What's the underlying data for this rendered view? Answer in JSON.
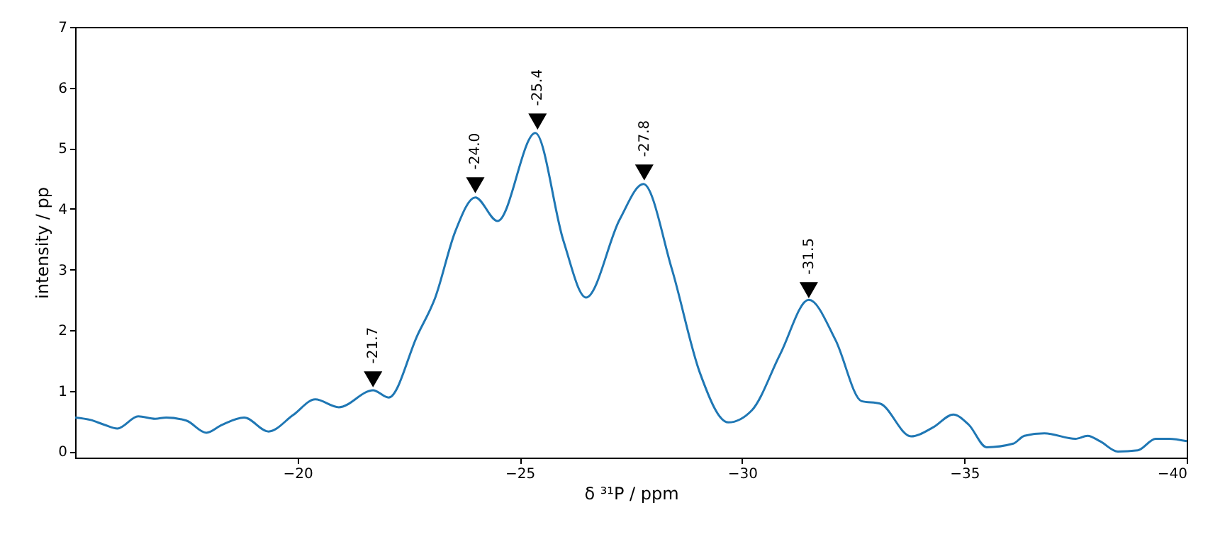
{
  "chart_data": {
    "type": "line",
    "xlabel": "δ ³¹P / ppm",
    "ylabel": "intensity / pp",
    "xlim": [
      -15,
      -40
    ],
    "xticks": [
      -20,
      -25,
      -30,
      -35,
      -40
    ],
    "ylim": [
      -0.1,
      7
    ],
    "yticks": [
      0,
      1,
      2,
      3,
      4,
      5,
      6,
      7
    ],
    "grid": false,
    "series": [
      {
        "color": "#1f77b4",
        "x": [
          -15.0,
          -15.35,
          -15.66,
          -15.95,
          -16.42,
          -16.8,
          -17.05,
          -17.5,
          -17.95,
          -18.3,
          -18.8,
          -19.35,
          -19.9,
          -20.4,
          -20.93,
          -21.7,
          -22.05,
          -22.7,
          -23.1,
          -23.55,
          -24.0,
          -24.5,
          -25.35,
          -25.98,
          -26.49,
          -27.25,
          -27.78,
          -28.42,
          -29.05,
          -29.69,
          -30.22,
          -30.86,
          -31.5,
          -32.1,
          -32.69,
          -33.1,
          -33.8,
          -34.3,
          -34.75,
          -35.1,
          -35.5,
          -36.1,
          -36.35,
          -36.8,
          -37.5,
          -37.77,
          -38.05,
          -38.45,
          -38.9,
          -39.3,
          -39.6,
          -40.0
        ],
        "values": [
          0.56,
          0.52,
          0.44,
          0.38,
          0.58,
          0.54,
          0.56,
          0.51,
          0.31,
          0.44,
          0.56,
          0.33,
          0.6,
          0.86,
          0.73,
          1.01,
          0.89,
          1.92,
          2.54,
          3.63,
          4.19,
          3.8,
          5.25,
          3.48,
          2.54,
          3.83,
          4.41,
          3.01,
          1.3,
          0.48,
          0.68,
          1.61,
          2.5,
          1.84,
          0.83,
          0.79,
          0.25,
          0.4,
          0.61,
          0.44,
          0.07,
          0.13,
          0.26,
          0.3,
          0.21,
          0.26,
          0.17,
          0.0,
          0.02,
          0.21,
          0.21,
          0.17
        ]
      },
      {
        "type": "scatter",
        "color": "#000000",
        "marker": "triangle",
        "x": [
          -21.7,
          -24.0,
          -25.4,
          -27.8,
          -31.5
        ],
        "values": [
          1.19,
          4.39,
          5.44,
          4.6,
          2.66
        ]
      }
    ],
    "annotations": [
      {
        "text": "-21.7",
        "x": -21.7,
        "y": 1.19
      },
      {
        "text": "-24.0",
        "x": -24.0,
        "y": 4.39
      },
      {
        "text": "-25.4",
        "x": -25.4,
        "y": 5.44
      },
      {
        "text": "-27.8",
        "x": -27.8,
        "y": 4.6
      },
      {
        "text": "-31.5",
        "x": -31.5,
        "y": 2.66
      }
    ]
  }
}
